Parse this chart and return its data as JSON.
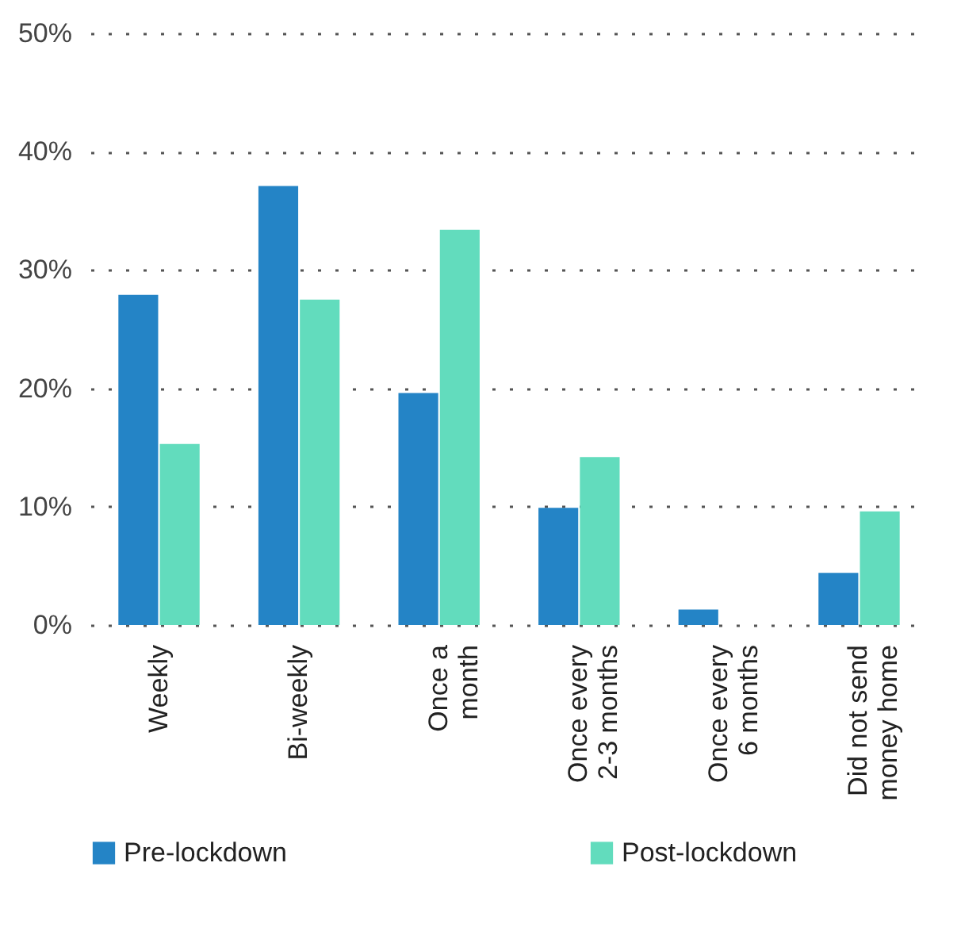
{
  "chart_data": {
    "type": "bar",
    "categories": [
      "Weekly",
      "Bi-weekly",
      "Once a\nmonth",
      "Once every\n2-3 months",
      "Once every\n6 months",
      "Did not send\nmoney home"
    ],
    "series": [
      {
        "name": "Pre-lockdown",
        "color": "#2484c6",
        "values": [
          27.9,
          37.1,
          19.6,
          9.9,
          1.3,
          4.4
        ]
      },
      {
        "name": "Post-lockdown",
        "color": "#62dcbd",
        "values": [
          15.3,
          27.5,
          33.4,
          14.2,
          0,
          9.6
        ]
      }
    ],
    "ylim": [
      0,
      50
    ],
    "yticks": [
      {
        "value": 0,
        "label": "0%"
      },
      {
        "value": 10,
        "label": "10%"
      },
      {
        "value": 20,
        "label": "20%"
      },
      {
        "value": 30,
        "label": "30%"
      },
      {
        "value": 40,
        "label": "40%"
      },
      {
        "value": 50,
        "label": "50%"
      }
    ],
    "grid": "y",
    "legend": "bottom"
  }
}
